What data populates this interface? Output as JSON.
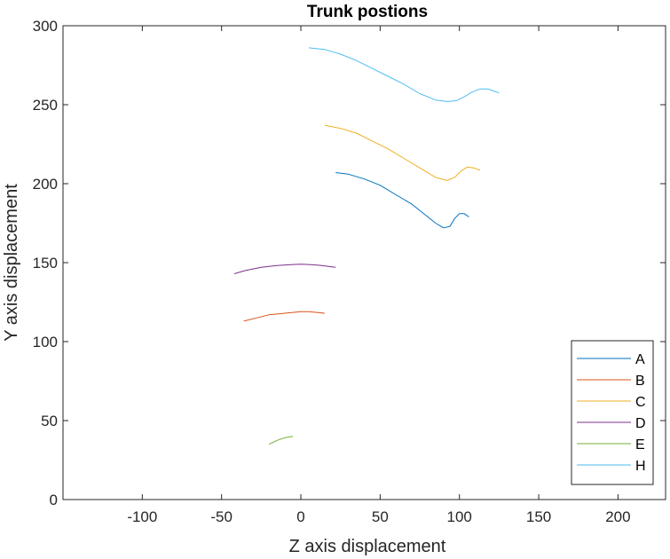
{
  "chart_data": {
    "type": "line",
    "title": "Trunk postions",
    "xlabel": "Z axis displacement",
    "ylabel": "Y axis displacement",
    "xlim": [
      -150,
      230
    ],
    "ylim": [
      0,
      300
    ],
    "xticks": [
      -100,
      -50,
      0,
      50,
      100,
      150,
      200
    ],
    "yticks": [
      0,
      50,
      100,
      150,
      200,
      250,
      300
    ],
    "grid": false,
    "legend_position": "bottom-right",
    "series": [
      {
        "name": "A",
        "color": "#0072BD",
        "points": [
          [
            22,
            207
          ],
          [
            30,
            206
          ],
          [
            40,
            203
          ],
          [
            50,
            199
          ],
          [
            60,
            193
          ],
          [
            70,
            187
          ],
          [
            80,
            179
          ],
          [
            85,
            175
          ],
          [
            90,
            172
          ],
          [
            94,
            173
          ],
          [
            97,
            178
          ],
          [
            100,
            181
          ],
          [
            103,
            181
          ],
          [
            106,
            179
          ]
        ]
      },
      {
        "name": "B",
        "color": "#D95319",
        "points": [
          [
            -36,
            113
          ],
          [
            -28,
            115
          ],
          [
            -20,
            117
          ],
          [
            -10,
            118
          ],
          [
            0,
            119
          ],
          [
            5,
            119
          ],
          [
            10,
            118.5
          ],
          [
            15,
            118
          ]
        ]
      },
      {
        "name": "C",
        "color": "#EDB120",
        "points": [
          [
            15,
            237
          ],
          [
            25,
            235
          ],
          [
            35,
            232
          ],
          [
            45,
            227
          ],
          [
            55,
            222
          ],
          [
            65,
            216
          ],
          [
            75,
            210
          ],
          [
            85,
            204
          ],
          [
            92,
            202
          ],
          [
            97,
            204
          ],
          [
            101,
            208
          ],
          [
            105,
            210.5
          ],
          [
            109,
            210
          ],
          [
            113,
            208.5
          ]
        ]
      },
      {
        "name": "D",
        "color": "#7E2F8E",
        "points": [
          [
            -42,
            143
          ],
          [
            -35,
            145
          ],
          [
            -25,
            147
          ],
          [
            -15,
            148.2
          ],
          [
            -5,
            148.8
          ],
          [
            0,
            149
          ],
          [
            5,
            148.8
          ],
          [
            12,
            148.3
          ],
          [
            22,
            147
          ]
        ]
      },
      {
        "name": "E",
        "color": "#77AC30",
        "points": [
          [
            -20,
            35
          ],
          [
            -15,
            37.5
          ],
          [
            -10,
            39.2
          ],
          [
            -5,
            40
          ]
        ]
      },
      {
        "name": "H",
        "color": "#4DBEEE",
        "points": [
          [
            5,
            286
          ],
          [
            15,
            285
          ],
          [
            25,
            282
          ],
          [
            35,
            278
          ],
          [
            45,
            273
          ],
          [
            55,
            268
          ],
          [
            65,
            263
          ],
          [
            75,
            257
          ],
          [
            85,
            253
          ],
          [
            92,
            252
          ],
          [
            98,
            252.5
          ],
          [
            103,
            255
          ],
          [
            108,
            258
          ],
          [
            113,
            260
          ],
          [
            118,
            260
          ],
          [
            122,
            258.5
          ],
          [
            125,
            257.5
          ]
        ]
      }
    ]
  }
}
